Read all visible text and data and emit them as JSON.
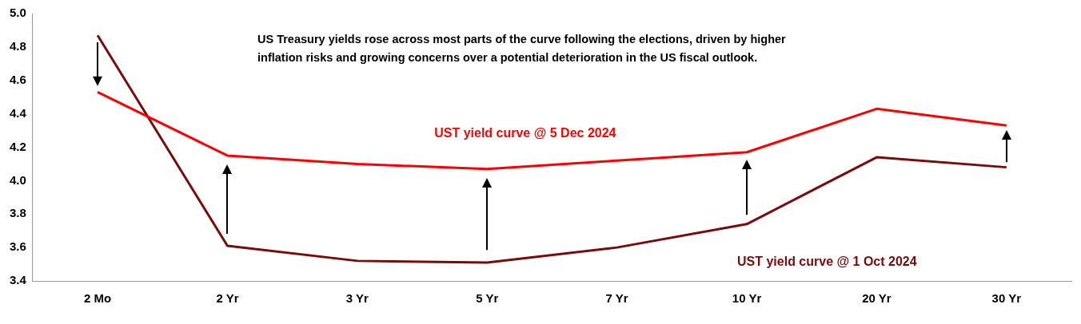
{
  "chart_data": {
    "type": "line",
    "categories": [
      "2 Mo",
      "2 Yr",
      "3 Yr",
      "5 Yr",
      "7 Yr",
      "10 Yr",
      "20 Yr",
      "30 Yr"
    ],
    "series": [
      {
        "name": "UST yield curve @ 5 Dec 2024",
        "color": "#ff0000",
        "values": [
          4.53,
          4.15,
          4.1,
          4.07,
          4.12,
          4.17,
          4.43,
          4.33
        ]
      },
      {
        "name": "UST yield curve @ 1 Oct 2024",
        "color": "#7b0a0a",
        "values": [
          4.87,
          3.61,
          3.52,
          3.51,
          3.6,
          3.74,
          4.14,
          4.08
        ]
      }
    ],
    "ylim": [
      3.4,
      5.0
    ],
    "yticks": [
      3.4,
      3.6,
      3.8,
      {
        "value": 4,
        "label": "4.0"
      },
      4.2,
      4.4,
      4.6,
      4.8,
      {
        "value": 5,
        "label": "5.0"
      }
    ],
    "grid": false,
    "legend": false,
    "marker": "none",
    "line_style": "solid",
    "annotations": [
      "US Treasury yields rose across most parts of the curve following the elections, driven by higher inflation risks and growing concerns over a potential deterioration in the US fiscal outlook."
    ]
  }
}
